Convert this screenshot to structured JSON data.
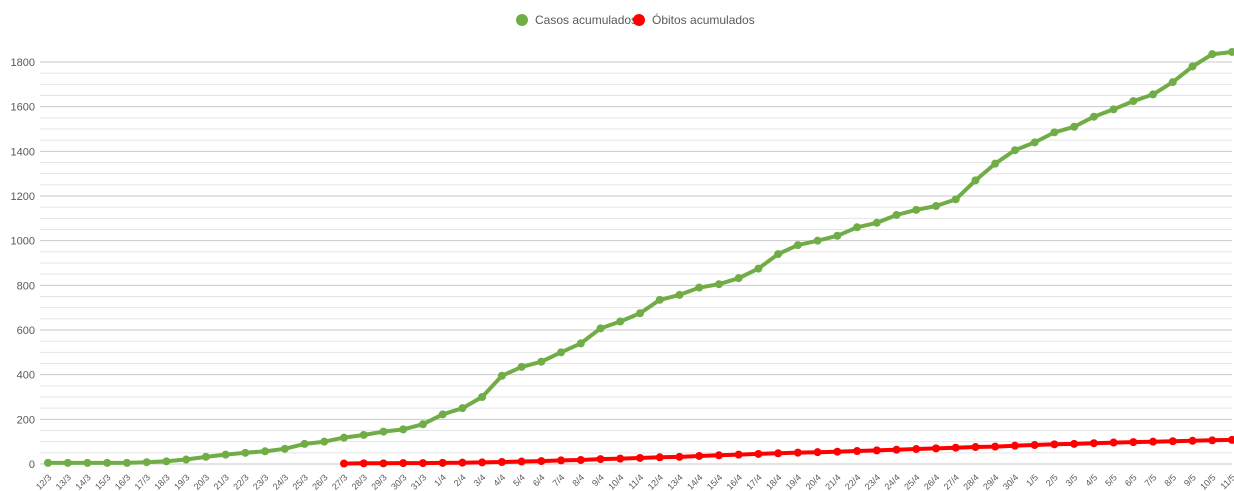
{
  "chart_data": {
    "type": "line",
    "title": "",
    "xlabel": "",
    "ylabel": "",
    "ylim": [
      0,
      1800
    ],
    "yticks": [
      0,
      200,
      400,
      600,
      800,
      1000,
      1200,
      1400,
      1600,
      1800
    ],
    "grid": "horizontal",
    "legend_position": "top-center",
    "categories": [
      "12/3",
      "13/3",
      "14/3",
      "15/3",
      "16/3",
      "17/3",
      "18/3",
      "19/3",
      "20/3",
      "21/3",
      "22/3",
      "23/3",
      "24/3",
      "25/3",
      "26/3",
      "27/3",
      "28/3",
      "29/3",
      "30/3",
      "31/3",
      "1/4",
      "2/4",
      "3/4",
      "4/4",
      "5/4",
      "6/4",
      "7/4",
      "8/4",
      "9/4",
      "10/4",
      "11/4",
      "12/4",
      "13/4",
      "14/4",
      "15/4",
      "16/4",
      "17/4",
      "18/4",
      "19/4",
      "20/4",
      "21/4",
      "22/4",
      "23/4",
      "24/4",
      "25/4",
      "26/4",
      "27/4",
      "28/4",
      "29/4",
      "30/4",
      "1/5",
      "2/5",
      "3/5",
      "4/5",
      "5/5",
      "6/5",
      "7/5",
      "8/5",
      "9/5",
      "10/5",
      "11/5"
    ],
    "series": [
      {
        "name": "Casos acumulados",
        "color": "#70ad47",
        "values": [
          5,
          5,
          5,
          5,
          5,
          8,
          12,
          20,
          32,
          42,
          50,
          57,
          68,
          90,
          100,
          118,
          130,
          145,
          155,
          178,
          222,
          250,
          300,
          395,
          435,
          458,
          500,
          540,
          607,
          638,
          675,
          735,
          757,
          790,
          805,
          832,
          875,
          940,
          980,
          1000,
          1022,
          1060,
          1080,
          1115,
          1138,
          1155,
          1185,
          1270,
          1345,
          1405,
          1440,
          1485,
          1510,
          1555,
          1588,
          1625,
          1655,
          1710,
          1780,
          1835,
          1845
        ]
      },
      {
        "name": "Óbitos acumulados",
        "color": "#ff0000",
        "values": [
          null,
          null,
          null,
          null,
          null,
          null,
          null,
          null,
          null,
          null,
          null,
          null,
          null,
          null,
          null,
          2,
          3,
          3,
          4,
          4,
          5,
          6,
          7,
          9,
          11,
          13,
          16,
          18,
          22,
          24,
          27,
          30,
          32,
          36,
          39,
          42,
          45,
          48,
          51,
          53,
          55,
          58,
          61,
          64,
          67,
          70,
          73,
          76,
          78,
          82,
          85,
          88,
          90,
          93,
          96,
          98,
          100,
          102,
          104,
          106,
          108
        ]
      }
    ]
  }
}
